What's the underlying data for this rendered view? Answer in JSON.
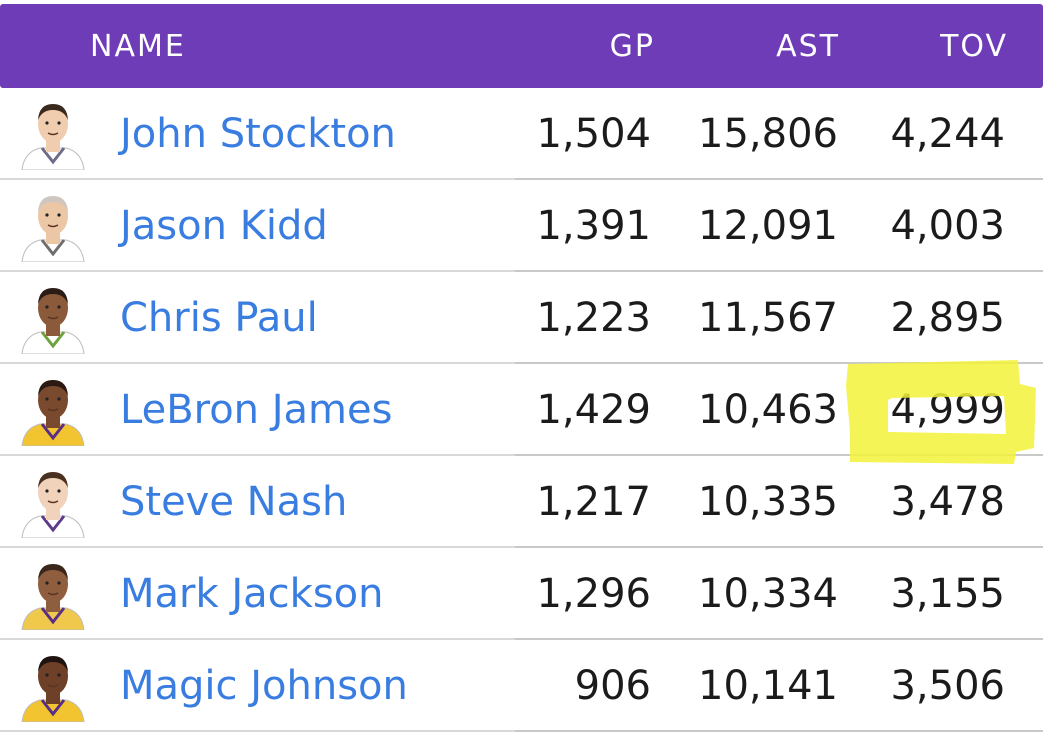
{
  "header": {
    "name": "NAME",
    "gp": "GP",
    "ast": "AST",
    "tov": "TOV"
  },
  "colors": {
    "header_bg": "#6f3cb8",
    "link": "#3a7de0",
    "highlight": "#f2f23a"
  },
  "rows": [
    {
      "name": "John Stockton",
      "gp": "1,504",
      "ast": "15,806",
      "tov": "4,244",
      "skin": "#f1cdb0",
      "hair": "#3a2a1e",
      "jersey": "#ffffff",
      "trim": "#6b6b8a"
    },
    {
      "name": "Jason Kidd",
      "gp": "1,391",
      "ast": "12,091",
      "tov": "4,003",
      "skin": "#ecc7a6",
      "hair": "#cfc7bf",
      "jersey": "#ffffff",
      "trim": "#6f6f6f"
    },
    {
      "name": "Chris Paul",
      "gp": "1,223",
      "ast": "11,567",
      "tov": "2,895",
      "skin": "#8a5a3a",
      "hair": "#2b1d15",
      "jersey": "#ffffff",
      "trim": "#6ea23c"
    },
    {
      "name": "LeBron James",
      "gp": "1,429",
      "ast": "10,463",
      "tov": "4,999",
      "skin": "#7a4a2e",
      "hair": "#2a1a12",
      "jersey": "#f2c530",
      "trim": "#5a2d86"
    },
    {
      "name": "Steve Nash",
      "gp": "1,217",
      "ast": "10,335",
      "tov": "3,478",
      "skin": "#f1d2bb",
      "hair": "#4a3020",
      "jersey": "#ffffff",
      "trim": "#5b3b8a"
    },
    {
      "name": "Mark Jackson",
      "gp": "1,296",
      "ast": "10,334",
      "tov": "3,155",
      "skin": "#8f5e3e",
      "hair": "#3a261a",
      "jersey": "#f0c94c",
      "trim": "#5a2d86"
    },
    {
      "name": "Magic Johnson",
      "gp": "906",
      "ast": "10,141",
      "tov": "3,506",
      "skin": "#6e4028",
      "hair": "#201410",
      "jersey": "#f2c530",
      "trim": "#5a2d86"
    }
  ],
  "highlighted_cell": {
    "row": "LeBron James",
    "column": "TOV",
    "value": "4,999"
  }
}
